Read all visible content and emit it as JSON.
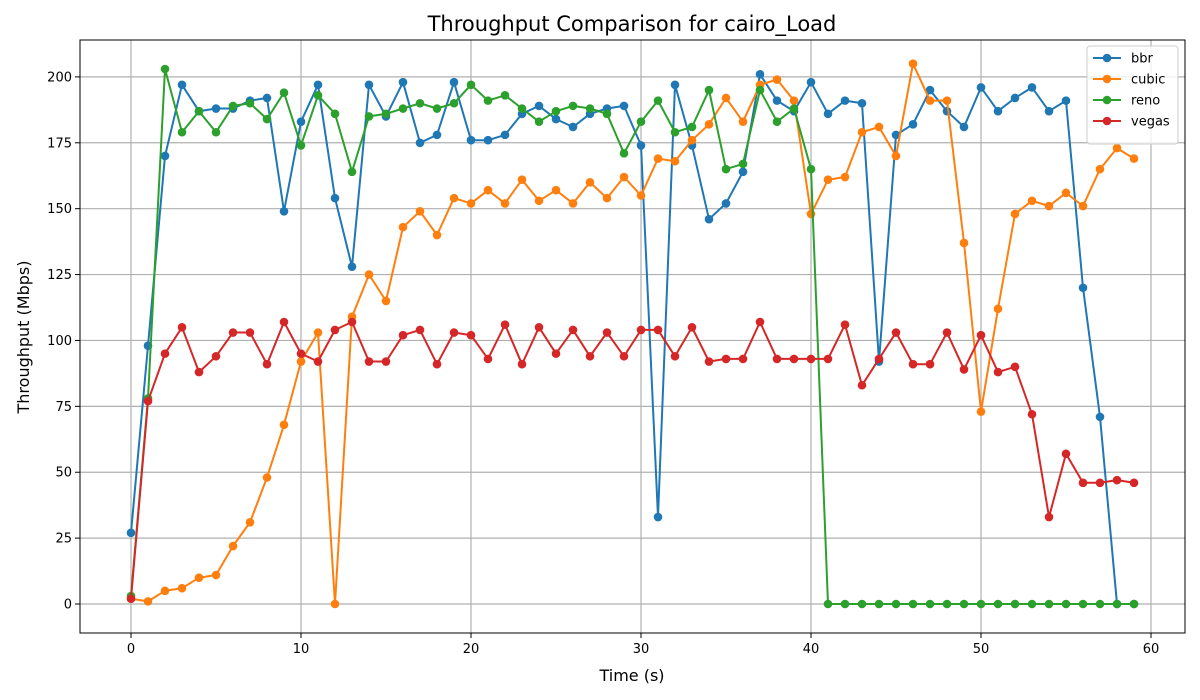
{
  "chart_data": {
    "type": "line",
    "title": "Throughput Comparison for cairo_Load",
    "xlabel": "Time (s)",
    "ylabel": "Throughput (Mbps)",
    "xlim": [
      -3,
      62
    ],
    "ylim": [
      -11,
      214
    ],
    "xticks": [
      0,
      10,
      20,
      30,
      40,
      50,
      60
    ],
    "yticks": [
      0,
      25,
      50,
      75,
      100,
      125,
      150,
      175,
      200
    ],
    "grid": true,
    "legend_position": "top-right",
    "x": [
      0,
      1,
      2,
      3,
      4,
      5,
      6,
      7,
      8,
      9,
      10,
      11,
      12,
      13,
      14,
      15,
      16,
      17,
      18,
      19,
      20,
      21,
      22,
      23,
      24,
      25,
      26,
      27,
      28,
      29,
      30,
      31,
      32,
      33,
      34,
      35,
      36,
      37,
      38,
      39,
      40,
      41,
      42,
      43,
      44,
      45,
      46,
      47,
      48,
      49,
      50,
      51,
      52,
      53,
      54,
      55,
      56,
      57,
      58,
      59
    ],
    "series": [
      {
        "name": "bbr",
        "color": "#1f77b4",
        "values": [
          27,
          98,
          170,
          197,
          187,
          188,
          188,
          191,
          192,
          149,
          183,
          197,
          154,
          128,
          197,
          185,
          198,
          175,
          178,
          198,
          176,
          176,
          178,
          186,
          189,
          184,
          181,
          186,
          188,
          189,
          174,
          33,
          197,
          174,
          146,
          152,
          164,
          201,
          191,
          187,
          198,
          186,
          191,
          190,
          92,
          178,
          182,
          195,
          187,
          181,
          196,
          187,
          192,
          196,
          187,
          191,
          120,
          71,
          0,
          0
        ]
      },
      {
        "name": "cubic",
        "color": "#ff7f0e",
        "values": [
          2,
          1,
          5,
          6,
          10,
          11,
          22,
          31,
          48,
          68,
          92,
          103,
          0,
          109,
          125,
          115,
          143,
          149,
          140,
          154,
          152,
          157,
          152,
          161,
          153,
          157,
          152,
          160,
          154,
          162,
          155,
          169,
          168,
          176,
          182,
          192,
          183,
          197,
          199,
          191,
          148,
          161,
          162,
          179,
          181,
          170,
          205,
          191,
          191,
          137,
          73,
          112,
          148,
          153,
          151,
          156,
          151,
          165,
          173,
          169
        ]
      },
      {
        "name": "reno",
        "color": "#2ca02c",
        "values": [
          3,
          78,
          203,
          179,
          187,
          179,
          189,
          190,
          184,
          194,
          174,
          193,
          186,
          164,
          185,
          186,
          188,
          190,
          188,
          190,
          197,
          191,
          193,
          188,
          183,
          187,
          189,
          188,
          186,
          171,
          183,
          191,
          179,
          181,
          195,
          165,
          167,
          195,
          183,
          188,
          165,
          0,
          0,
          0,
          0,
          0,
          0,
          0,
          0,
          0,
          0,
          0,
          0,
          0,
          0,
          0,
          0,
          0,
          0,
          0
        ]
      },
      {
        "name": "vegas",
        "color": "#d62728",
        "values": [
          2,
          77,
          95,
          105,
          88,
          94,
          103,
          103,
          91,
          107,
          95,
          92,
          104,
          107,
          92,
          92,
          102,
          104,
          91,
          103,
          102,
          93,
          106,
          91,
          105,
          95,
          104,
          94,
          103,
          94,
          104,
          104,
          94,
          105,
          92,
          93,
          93,
          107,
          93,
          93,
          93,
          93,
          106,
          83,
          93,
          103,
          91,
          91,
          103,
          89,
          102,
          88,
          90,
          72,
          33,
          57,
          46,
          46,
          47,
          46
        ]
      }
    ]
  }
}
